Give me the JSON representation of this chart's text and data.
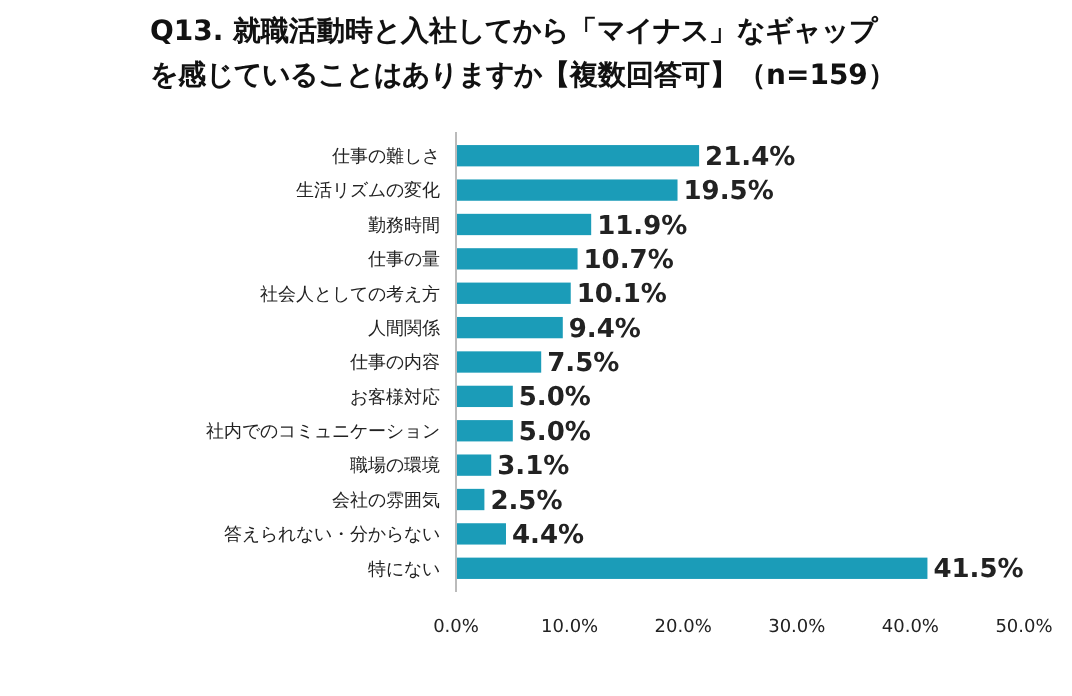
{
  "chart_data": {
    "type": "bar",
    "orientation": "horizontal",
    "title": "Q13.  就職活動時と入社してから「マイナス」なギャップを感じていることはありますか【複数回答可】（n=159）",
    "categories": [
      "仕事の難しさ",
      "生活リズムの変化",
      "勤務時間",
      "仕事の量",
      "社会人としての考え方",
      "人間関係",
      "仕事の内容",
      "お客様対応",
      "社内でのコミュニケーション",
      "職場の環境",
      "会社の雰囲気",
      "答えられない・分からない",
      "特にない"
    ],
    "values": [
      21.4,
      19.5,
      11.9,
      10.7,
      10.1,
      9.4,
      7.5,
      5.0,
      5.0,
      3.1,
      2.5,
      4.4,
      41.5
    ],
    "value_labels": [
      "21.4%",
      "19.5%",
      "11.9%",
      "10.7%",
      "10.1%",
      "9.4%",
      "7.5%",
      "5.0%",
      "5.0%",
      "3.1%",
      "2.5%",
      "4.4%",
      "41.5%"
    ],
    "color": "#1b9cb8",
    "xlim": [
      0,
      50
    ],
    "xticks": [
      {
        "value": 0,
        "label": "0.0%"
      },
      {
        "value": 10,
        "label": "10.0%"
      },
      {
        "value": 20,
        "label": "20.0%"
      },
      {
        "value": 30,
        "label": "30.0%"
      },
      {
        "value": 40,
        "label": "40.0%"
      },
      {
        "value": 50,
        "label": "50.0%"
      }
    ],
    "grid": false
  }
}
